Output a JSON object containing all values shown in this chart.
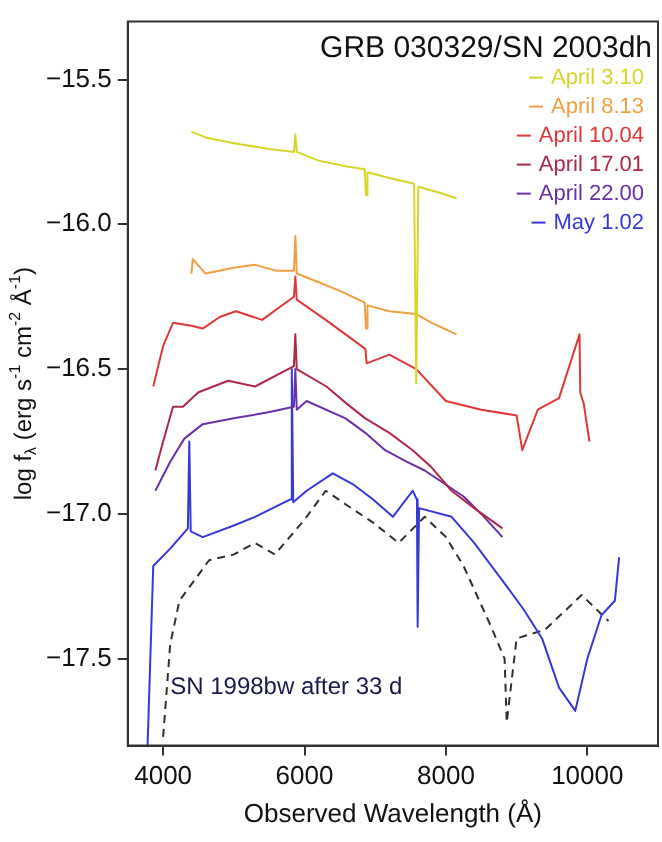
{
  "chart_data": {
    "type": "line",
    "title": "GRB 030329/SN 2003dh",
    "xlabel": "Observed Wavelength (Å)",
    "ylabel": "log f$_{λ}$ (erg s$^{-1}$ cm$^{-2}$ Å$^{-1}$)",
    "xlim": [
      3500,
      11000
    ],
    "xticks": [
      4000,
      6000,
      8000,
      10000
    ],
    "ylim": [
      -17.8,
      -15.3
    ],
    "yticks": [
      {
        "value": -15.5,
        "label": "−15.5"
      },
      {
        "value": -16.0,
        "label": "−16.0"
      },
      {
        "value": -16.5,
        "label": "−16.5"
      },
      {
        "value": -17.0,
        "label": "−17.0"
      },
      {
        "value": -17.5,
        "label": "−17.5"
      }
    ],
    "grid": false,
    "legend": "top right",
    "marker": "none",
    "series": [
      {
        "name": "April 3.10",
        "color": "#d6d62a",
        "x": [
          4400,
          4600,
          5000,
          5500,
          5850,
          5870,
          5890,
          6200,
          6600,
          6850,
          6870,
          6890,
          7200,
          7550,
          7580,
          7610,
          7900,
          8150
        ],
        "values": [
          -15.68,
          -15.7,
          -15.72,
          -15.74,
          -15.75,
          -15.69,
          -15.75,
          -15.78,
          -15.8,
          -15.81,
          -15.9,
          -15.82,
          -15.84,
          -15.86,
          -16.55,
          -15.87,
          -15.89,
          -15.91
        ]
      },
      {
        "name": "April 8.13",
        "color": "#f0a040",
        "x": [
          4400,
          4420,
          4600,
          5000,
          5300,
          5600,
          5850,
          5870,
          5890,
          6200,
          6500,
          6850,
          6870,
          6890,
          7200,
          7580,
          7800,
          8150
        ],
        "values": [
          -16.17,
          -16.12,
          -16.17,
          -16.15,
          -16.14,
          -16.16,
          -16.16,
          -16.04,
          -16.17,
          -16.2,
          -16.23,
          -16.27,
          -16.36,
          -16.28,
          -16.3,
          -16.31,
          -16.34,
          -16.38
        ]
      },
      {
        "name": "April 10.04",
        "color": "#e03838",
        "x": [
          3860,
          4000,
          4140,
          4400,
          4560,
          4800,
          5030,
          5400,
          5850,
          5870,
          5890,
          6300,
          6860,
          6880,
          7200,
          7580,
          8000,
          8500,
          9000,
          9080,
          9300,
          9600,
          9890,
          9900,
          9950,
          10030
        ],
        "values": [
          -16.56,
          -16.42,
          -16.34,
          -16.35,
          -16.36,
          -16.32,
          -16.3,
          -16.33,
          -16.25,
          -16.18,
          -16.26,
          -16.33,
          -16.43,
          -16.48,
          -16.45,
          -16.5,
          -16.61,
          -16.64,
          -16.66,
          -16.78,
          -16.64,
          -16.6,
          -16.38,
          -16.58,
          -16.62,
          -16.75
        ]
      },
      {
        "name": "April 17.01",
        "color": "#b02848",
        "x": [
          3890,
          4000,
          4140,
          4280,
          4500,
          4920,
          5300,
          5850,
          5870,
          5890,
          6310,
          6600,
          6860,
          7200,
          7530,
          7800,
          8080,
          8400,
          8800
        ],
        "values": [
          -16.85,
          -16.75,
          -16.63,
          -16.63,
          -16.58,
          -16.54,
          -16.56,
          -16.49,
          -16.38,
          -16.5,
          -16.56,
          -16.62,
          -16.67,
          -16.72,
          -16.78,
          -16.84,
          -16.92,
          -16.98,
          -17.05
        ]
      },
      {
        "name": "April 22.00",
        "color": "#6a30a8",
        "x": [
          3890,
          4100,
          4300,
          4560,
          5000,
          5470,
          5850,
          5870,
          5890,
          6030,
          6580,
          6860,
          7140,
          7450,
          7700,
          8250,
          8500,
          8800
        ],
        "values": [
          -16.92,
          -16.82,
          -16.74,
          -16.69,
          -16.67,
          -16.65,
          -16.63,
          -16.5,
          -16.64,
          -16.61,
          -16.67,
          -16.72,
          -16.78,
          -16.82,
          -16.85,
          -16.94,
          -17.0,
          -17.08
        ]
      },
      {
        "name": "May 1.02",
        "color": "#3838d8",
        "x": [
          3780,
          3860,
          4100,
          4350,
          4370,
          4390,
          4560,
          5000,
          5300,
          5800,
          5820,
          5840,
          6030,
          6400,
          6700,
          6970,
          7250,
          7530,
          7590,
          7600,
          7620,
          8080,
          8400,
          8800,
          9100,
          9360,
          9600,
          9830,
          10000,
          10200,
          10390,
          10450
        ],
        "values": [
          -17.8,
          -17.18,
          -17.12,
          -17.05,
          -16.75,
          -17.06,
          -17.08,
          -17.04,
          -17.01,
          -16.95,
          -16.5,
          -16.96,
          -16.92,
          -16.86,
          -16.9,
          -16.95,
          -17.01,
          -16.92,
          -16.95,
          -17.39,
          -16.98,
          -17.01,
          -17.1,
          -17.23,
          -17.33,
          -17.43,
          -17.6,
          -17.68,
          -17.5,
          -17.35,
          -17.3,
          -17.15
        ]
      },
      {
        "color": "#303030",
        "line_style": "dashed",
        "x": [
          4000,
          4100,
          4230,
          4650,
          5000,
          5300,
          5580,
          6000,
          6300,
          6600,
          6970,
          7330,
          7700,
          8000,
          8250,
          8640,
          8830,
          8860,
          9000,
          9400,
          9920,
          10300
        ],
        "values": [
          -17.77,
          -17.45,
          -17.3,
          -17.16,
          -17.14,
          -17.1,
          -17.14,
          -17.02,
          -16.92,
          -16.97,
          -17.03,
          -17.1,
          -17.01,
          -17.08,
          -17.18,
          -17.39,
          -17.5,
          -17.72,
          -17.43,
          -17.4,
          -17.28,
          -17.37
        ]
      }
    ],
    "annotations": [
      {
        "text": "SN 1998bw after 33 d",
        "x": 4100,
        "y": -17.6
      }
    ]
  }
}
